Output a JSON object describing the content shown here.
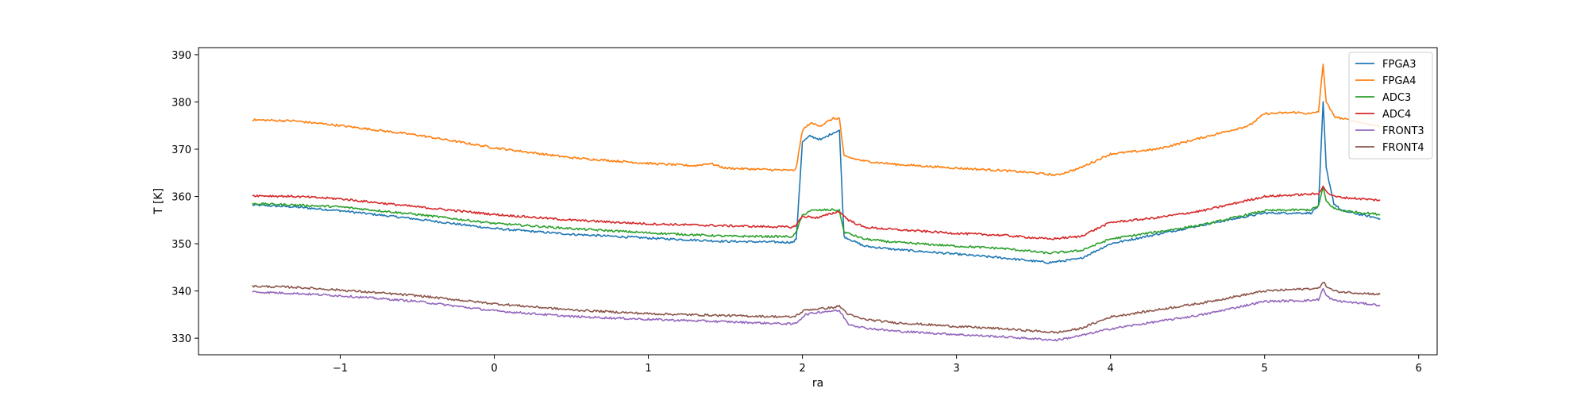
{
  "chart_data": {
    "type": "line",
    "title": "",
    "xlabel": "ra",
    "ylabel": "T [K]",
    "xlim": [
      -1.92,
      6.12
    ],
    "ylim": [
      326.5,
      391.5
    ],
    "xticks": [
      -1,
      0,
      1,
      2,
      3,
      4,
      5,
      6
    ],
    "xtick_labels": [
      "−1",
      "0",
      "1",
      "2",
      "3",
      "4",
      "5",
      "6"
    ],
    "yticks": [
      330,
      340,
      350,
      360,
      370,
      380,
      390
    ],
    "ytick_labels": [
      "330",
      "340",
      "350",
      "360",
      "370",
      "380",
      "390"
    ],
    "grid": false,
    "legend_position": "top-right",
    "series": [
      {
        "name": "FPGA3",
        "color": "#1f77b4",
        "x": [
          -1.57,
          -1.3,
          -1.0,
          -0.5,
          0.0,
          0.5,
          1.0,
          1.5,
          1.94,
          1.96,
          2.0,
          2.05,
          2.12,
          2.2,
          2.24,
          2.27,
          2.4,
          2.6,
          3.0,
          3.3,
          3.6,
          3.8,
          4.0,
          4.3,
          4.6,
          5.0,
          5.3,
          5.35,
          5.38,
          5.4,
          5.45,
          5.5,
          5.75
        ],
        "y": [
          358.2,
          357.8,
          357.0,
          355.2,
          353.2,
          352.0,
          351.2,
          350.5,
          350.3,
          351.0,
          371.5,
          372.8,
          372.0,
          373.5,
          374.0,
          351.5,
          349.5,
          348.8,
          347.8,
          347.0,
          346.0,
          346.8,
          350.0,
          352.0,
          354.0,
          356.5,
          356.5,
          358.0,
          380.0,
          366.0,
          358.5,
          357.0,
          355.3
        ]
      },
      {
        "name": "FPGA4",
        "color": "#ff7f0e",
        "x": [
          -1.57,
          -1.3,
          -1.0,
          -0.5,
          0.0,
          0.5,
          1.0,
          1.3,
          1.4,
          1.5,
          1.94,
          1.96,
          2.0,
          2.05,
          2.12,
          2.2,
          2.24,
          2.27,
          2.4,
          2.6,
          3.0,
          3.3,
          3.5,
          3.65,
          3.8,
          4.0,
          4.3,
          4.6,
          4.9,
          5.0,
          5.2,
          5.3,
          5.35,
          5.38,
          5.4,
          5.45,
          5.5,
          5.75
        ],
        "y": [
          376.2,
          376.0,
          375.0,
          373.0,
          370.3,
          368.2,
          367.0,
          366.5,
          367.0,
          366.0,
          365.5,
          366.0,
          374.0,
          375.5,
          375.0,
          376.5,
          376.5,
          368.5,
          367.5,
          366.8,
          366.0,
          365.5,
          365.0,
          364.5,
          366.0,
          369.0,
          370.0,
          372.5,
          375.0,
          377.5,
          377.8,
          377.5,
          378.0,
          388.0,
          380.0,
          377.0,
          376.5,
          374.8
        ]
      },
      {
        "name": "ADC3",
        "color": "#2ca02c",
        "x": [
          -1.57,
          -1.3,
          -1.0,
          -0.5,
          0.0,
          0.5,
          1.0,
          1.5,
          1.94,
          1.96,
          2.0,
          2.05,
          2.2,
          2.24,
          2.27,
          2.4,
          2.6,
          3.0,
          3.3,
          3.6,
          3.8,
          4.0,
          4.3,
          4.6,
          5.0,
          5.3,
          5.35,
          5.38,
          5.4,
          5.45,
          5.5,
          5.75
        ],
        "y": [
          358.5,
          358.2,
          357.8,
          356.2,
          354.3,
          353.2,
          352.3,
          351.6,
          351.5,
          352.5,
          356.0,
          357.0,
          357.2,
          357.0,
          352.5,
          351.0,
          350.3,
          349.5,
          349.0,
          348.0,
          348.5,
          351.0,
          352.5,
          354.0,
          357.0,
          357.2,
          358.0,
          362.0,
          359.0,
          357.5,
          357.0,
          356.2
        ]
      },
      {
        "name": "ADC4",
        "color": "#d62728",
        "x": [
          -1.57,
          -1.3,
          -1.0,
          -0.5,
          0.0,
          0.5,
          1.0,
          1.5,
          1.94,
          1.96,
          2.0,
          2.1,
          2.2,
          2.24,
          2.3,
          2.4,
          2.6,
          3.0,
          3.3,
          3.6,
          3.8,
          4.0,
          4.3,
          4.6,
          5.0,
          5.3,
          5.35,
          5.38,
          5.4,
          5.45,
          5.5,
          5.75
        ],
        "y": [
          360.2,
          360.0,
          359.5,
          357.8,
          356.2,
          355.0,
          354.2,
          353.8,
          353.5,
          354.0,
          355.8,
          355.5,
          356.5,
          356.8,
          355.0,
          353.5,
          353.0,
          352.2,
          351.8,
          351.0,
          351.5,
          354.5,
          355.5,
          357.0,
          360.0,
          360.5,
          360.5,
          362.3,
          361.0,
          360.0,
          359.8,
          359.2
        ]
      },
      {
        "name": "FRONT3",
        "color": "#9467bd",
        "x": [
          -1.57,
          -1.3,
          -1.0,
          -0.5,
          0.0,
          0.5,
          1.0,
          1.5,
          1.94,
          1.96,
          2.02,
          2.1,
          2.2,
          2.24,
          2.3,
          2.4,
          2.6,
          3.0,
          3.3,
          3.65,
          3.8,
          4.0,
          4.3,
          4.6,
          5.0,
          5.3,
          5.35,
          5.38,
          5.4,
          5.45,
          5.5,
          5.75
        ],
        "y": [
          339.8,
          339.5,
          339.0,
          337.8,
          335.8,
          334.6,
          334.0,
          333.5,
          333.0,
          333.3,
          335.0,
          335.5,
          335.8,
          335.8,
          333.0,
          332.2,
          331.5,
          330.8,
          330.3,
          329.6,
          330.5,
          332.0,
          333.5,
          335.0,
          337.8,
          338.0,
          338.2,
          340.5,
          339.0,
          338.0,
          337.8,
          337.0
        ]
      },
      {
        "name": "FRONT4",
        "color": "#8c564b",
        "x": [
          -1.57,
          -1.3,
          -1.0,
          -0.5,
          0.0,
          0.5,
          1.0,
          1.5,
          1.94,
          1.96,
          2.02,
          2.1,
          2.2,
          2.24,
          2.3,
          2.4,
          2.6,
          3.0,
          3.3,
          3.65,
          3.8,
          4.0,
          4.3,
          4.6,
          5.0,
          5.3,
          5.35,
          5.38,
          5.4,
          5.45,
          5.5,
          5.75
        ],
        "y": [
          341.0,
          340.8,
          340.2,
          339.0,
          337.3,
          336.0,
          335.2,
          334.8,
          334.5,
          334.8,
          336.0,
          336.2,
          336.5,
          336.8,
          335.0,
          334.0,
          333.3,
          332.5,
          332.0,
          331.2,
          332.0,
          334.5,
          336.0,
          337.5,
          340.0,
          340.5,
          340.5,
          342.0,
          341.0,
          340.0,
          339.8,
          339.3
        ]
      }
    ]
  }
}
